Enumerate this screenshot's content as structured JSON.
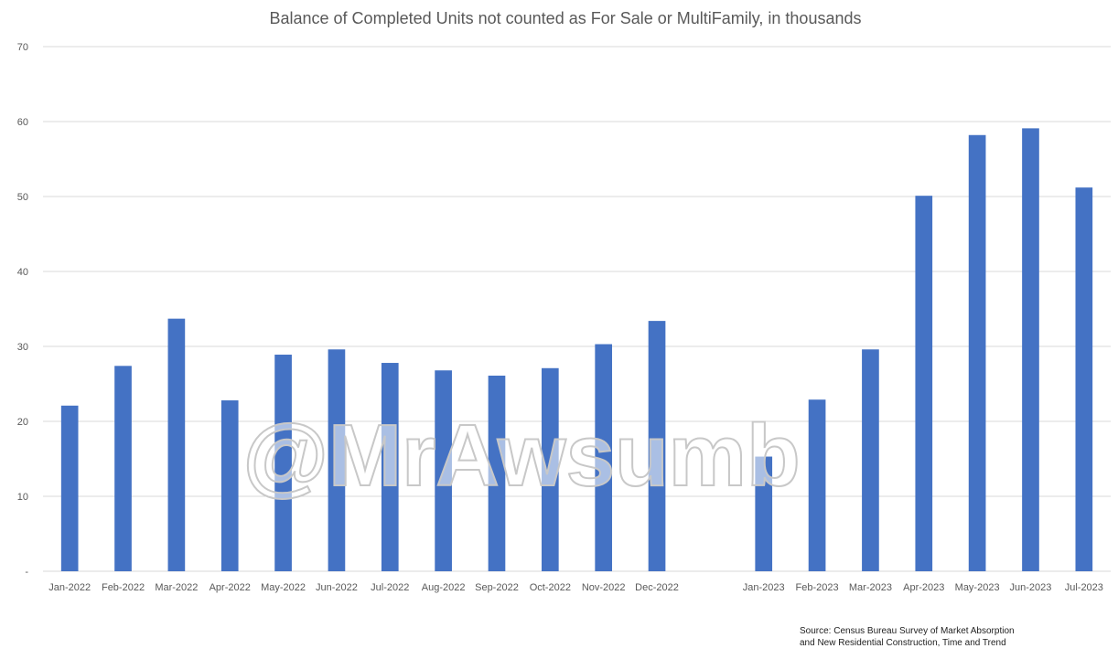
{
  "chart_data": {
    "type": "bar",
    "title": "Balance of Completed Units not counted as For Sale or MultiFamily, in thousands",
    "categories": [
      "Jan-2022",
      "Feb-2022",
      "Mar-2022",
      "Apr-2022",
      "May-2022",
      "Jun-2022",
      "Jul-2022",
      "Aug-2022",
      "Sep-2022",
      "Oct-2022",
      "Nov-2022",
      "Dec-2022",
      "",
      "Jan-2023",
      "Feb-2023",
      "Mar-2023",
      "Apr-2023",
      "May-2023",
      "Jun-2023",
      "Jul-2023"
    ],
    "values": [
      22.1,
      27.4,
      33.7,
      22.8,
      28.9,
      29.6,
      27.8,
      26.8,
      26.1,
      27.1,
      30.3,
      33.4,
      null,
      15.3,
      22.9,
      29.6,
      50.1,
      58.2,
      59.1,
      51.2
    ],
    "ylim": [
      0,
      70
    ],
    "yticks": [
      0,
      10,
      20,
      30,
      40,
      50,
      60,
      70
    ],
    "ytick_labels": [
      "-",
      "10",
      "20",
      "30",
      "40",
      "50",
      "60",
      "70"
    ],
    "grid": true,
    "bar_color": "#4472c4",
    "grid_color": "#d9d9d9"
  },
  "watermark": "@MrAwsumb",
  "source": "Source: Census Bureau Survey of Market Absorption\nand New Residential Construction, Time and Trend"
}
